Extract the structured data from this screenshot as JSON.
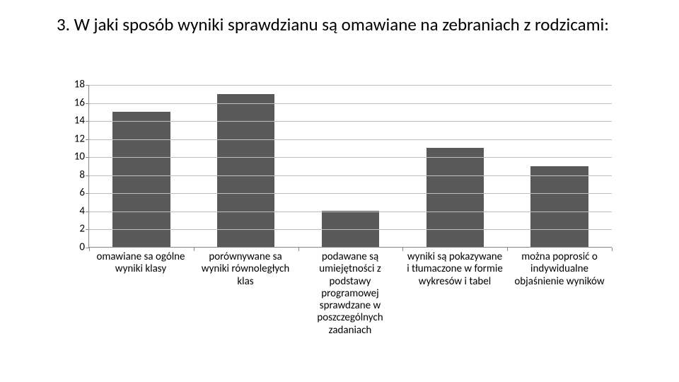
{
  "title": "3. W jaki sposób wyniki sprawdzianu są omawiane na zebraniach z rodzicami:",
  "chart": {
    "type": "bar",
    "background_color": "#ffffff",
    "bar_color": "#595959",
    "grid_color": "#bfbfbf",
    "axis_color": "#888888",
    "font_family": "Calibri, Arial, sans-serif",
    "title_fontsize": 25,
    "label_fontsize": 15,
    "ylim": [
      0,
      18
    ],
    "ytick_step": 2,
    "yticks": [
      0,
      2,
      4,
      6,
      8,
      10,
      12,
      14,
      16,
      18
    ],
    "bar_width": 0.55,
    "categories": [
      "omawiane sa ogólne wyniki klasy",
      "porównywane sa wyniki równoległych klas",
      "podawane są umiejętności z podstawy programowej sprawdzane w poszczególnych zadaniach",
      "wyniki są pokazywane i tłumaczone w formie wykresów i tabel",
      "można poprosić o indywidualne objaśnienie wyników"
    ],
    "values": [
      15,
      17,
      4,
      11,
      9
    ]
  }
}
